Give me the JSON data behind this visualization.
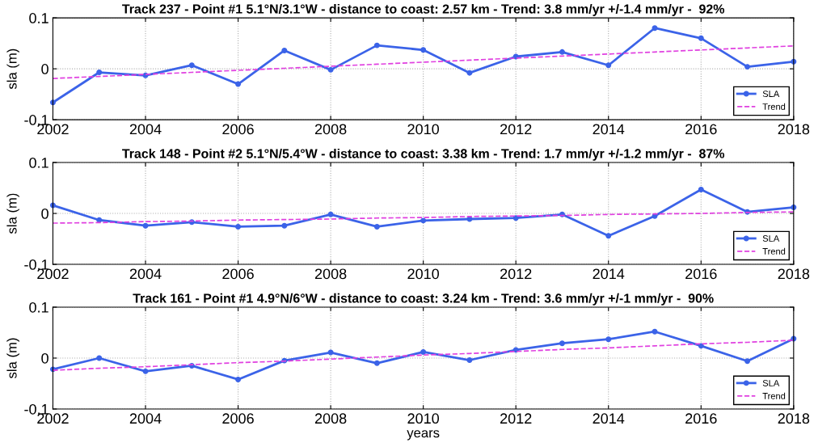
{
  "chart_data": [
    {
      "type": "line",
      "title": "Track 237 - Point #1 5.1°N/3.1°W - distance to coast: 2.57 km - Trend: 3.8 mm/yr +/-1.4 mm/yr -  92%",
      "ylabel": "sla (m)",
      "x": [
        2002,
        2003,
        2004,
        2005,
        2006,
        2007,
        2008,
        2009,
        2010,
        2011,
        2012,
        2013,
        2014,
        2015,
        2016,
        2017,
        2018
      ],
      "series": [
        {
          "name": "SLA",
          "color": "#3b63e8",
          "marker": "circle",
          "line_style": "solid",
          "values": [
            -0.066,
            -0.007,
            -0.013,
            0.007,
            -0.03,
            0.036,
            -0.002,
            0.046,
            0.037,
            -0.008,
            0.024,
            0.033,
            0.007,
            0.08,
            0.06,
            0.004,
            0.014
          ]
        },
        {
          "name": "Trend",
          "color": "#e040e0",
          "marker": "none",
          "line_style": "dashed",
          "values": [
            -0.019,
            -0.015,
            -0.011,
            -0.007,
            -0.003,
            0.001,
            0.005,
            0.009,
            0.013,
            0.017,
            0.021,
            0.025,
            0.029,
            0.033,
            0.037,
            0.041,
            0.045
          ]
        }
      ],
      "xlim": [
        2002,
        2018
      ],
      "ylim": [
        -0.1,
        0.1
      ],
      "xticks": [
        2002,
        2004,
        2006,
        2008,
        2010,
        2012,
        2014,
        2016,
        2018
      ],
      "yticks": [
        -0.1,
        0,
        0.1
      ],
      "grid": true,
      "legend": "bottom right"
    },
    {
      "type": "line",
      "title": "Track 148 - Point #2 5.1°N/5.4°W - distance to coast: 3.38 km - Trend: 1.7 mm/yr +/-1.2 mm/yr -  87%",
      "ylabel": "sla (m)",
      "x": [
        2002,
        2003,
        2004,
        2005,
        2006,
        2007,
        2008,
        2009,
        2010,
        2011,
        2012,
        2013,
        2014,
        2015,
        2016,
        2017,
        2018
      ],
      "series": [
        {
          "name": "SLA",
          "color": "#3b63e8",
          "marker": "circle",
          "line_style": "solid",
          "values": [
            0.016,
            -0.013,
            -0.024,
            -0.017,
            -0.026,
            -0.024,
            -0.002,
            -0.026,
            -0.014,
            -0.011,
            -0.009,
            -0.002,
            -0.044,
            -0.005,
            0.047,
            0.003,
            0.012
          ]
        },
        {
          "name": "Trend",
          "color": "#e040e0",
          "marker": "none",
          "line_style": "dashed",
          "values": [
            -0.019,
            -0.018,
            -0.016,
            -0.015,
            -0.013,
            -0.012,
            -0.011,
            -0.009,
            -0.008,
            -0.006,
            -0.005,
            -0.004,
            -0.002,
            -0.001,
            0.0,
            0.002,
            0.003
          ]
        }
      ],
      "xlim": [
        2002,
        2018
      ],
      "ylim": [
        -0.1,
        0.1
      ],
      "xticks": [
        2002,
        2004,
        2006,
        2008,
        2010,
        2012,
        2014,
        2016,
        2018
      ],
      "yticks": [
        -0.1,
        0,
        0.1
      ],
      "grid": true,
      "legend": "bottom right"
    },
    {
      "type": "line",
      "title": "Track 161 - Point #1 4.9°N/6°W - distance to coast: 3.24 km - Trend: 3.6 mm/yr +/-1 mm/yr -  90%",
      "xlabel": "years",
      "ylabel": "sla (m)",
      "x": [
        2002,
        2003,
        2004,
        2005,
        2006,
        2007,
        2008,
        2009,
        2010,
        2011,
        2012,
        2013,
        2014,
        2015,
        2016,
        2017,
        2018
      ],
      "series": [
        {
          "name": "SLA",
          "color": "#3b63e8",
          "marker": "circle",
          "line_style": "solid",
          "values": [
            -0.022,
            0.0,
            -0.026,
            -0.015,
            -0.042,
            -0.005,
            0.011,
            -0.01,
            0.012,
            -0.004,
            0.016,
            0.029,
            0.037,
            0.052,
            0.024,
            -0.006,
            0.038
          ]
        },
        {
          "name": "Trend",
          "color": "#e040e0",
          "marker": "none",
          "line_style": "dashed",
          "values": [
            -0.024,
            -0.02,
            -0.017,
            -0.013,
            -0.009,
            -0.006,
            -0.002,
            0.002,
            0.006,
            0.009,
            0.013,
            0.017,
            0.02,
            0.024,
            0.028,
            0.031,
            0.035
          ]
        }
      ],
      "xlim": [
        2002,
        2018
      ],
      "ylim": [
        -0.1,
        0.1
      ],
      "xticks": [
        2002,
        2004,
        2006,
        2008,
        2010,
        2012,
        2014,
        2016,
        2018
      ],
      "yticks": [
        -0.1,
        0,
        0.1
      ],
      "grid": true,
      "legend": "bottom right"
    }
  ]
}
